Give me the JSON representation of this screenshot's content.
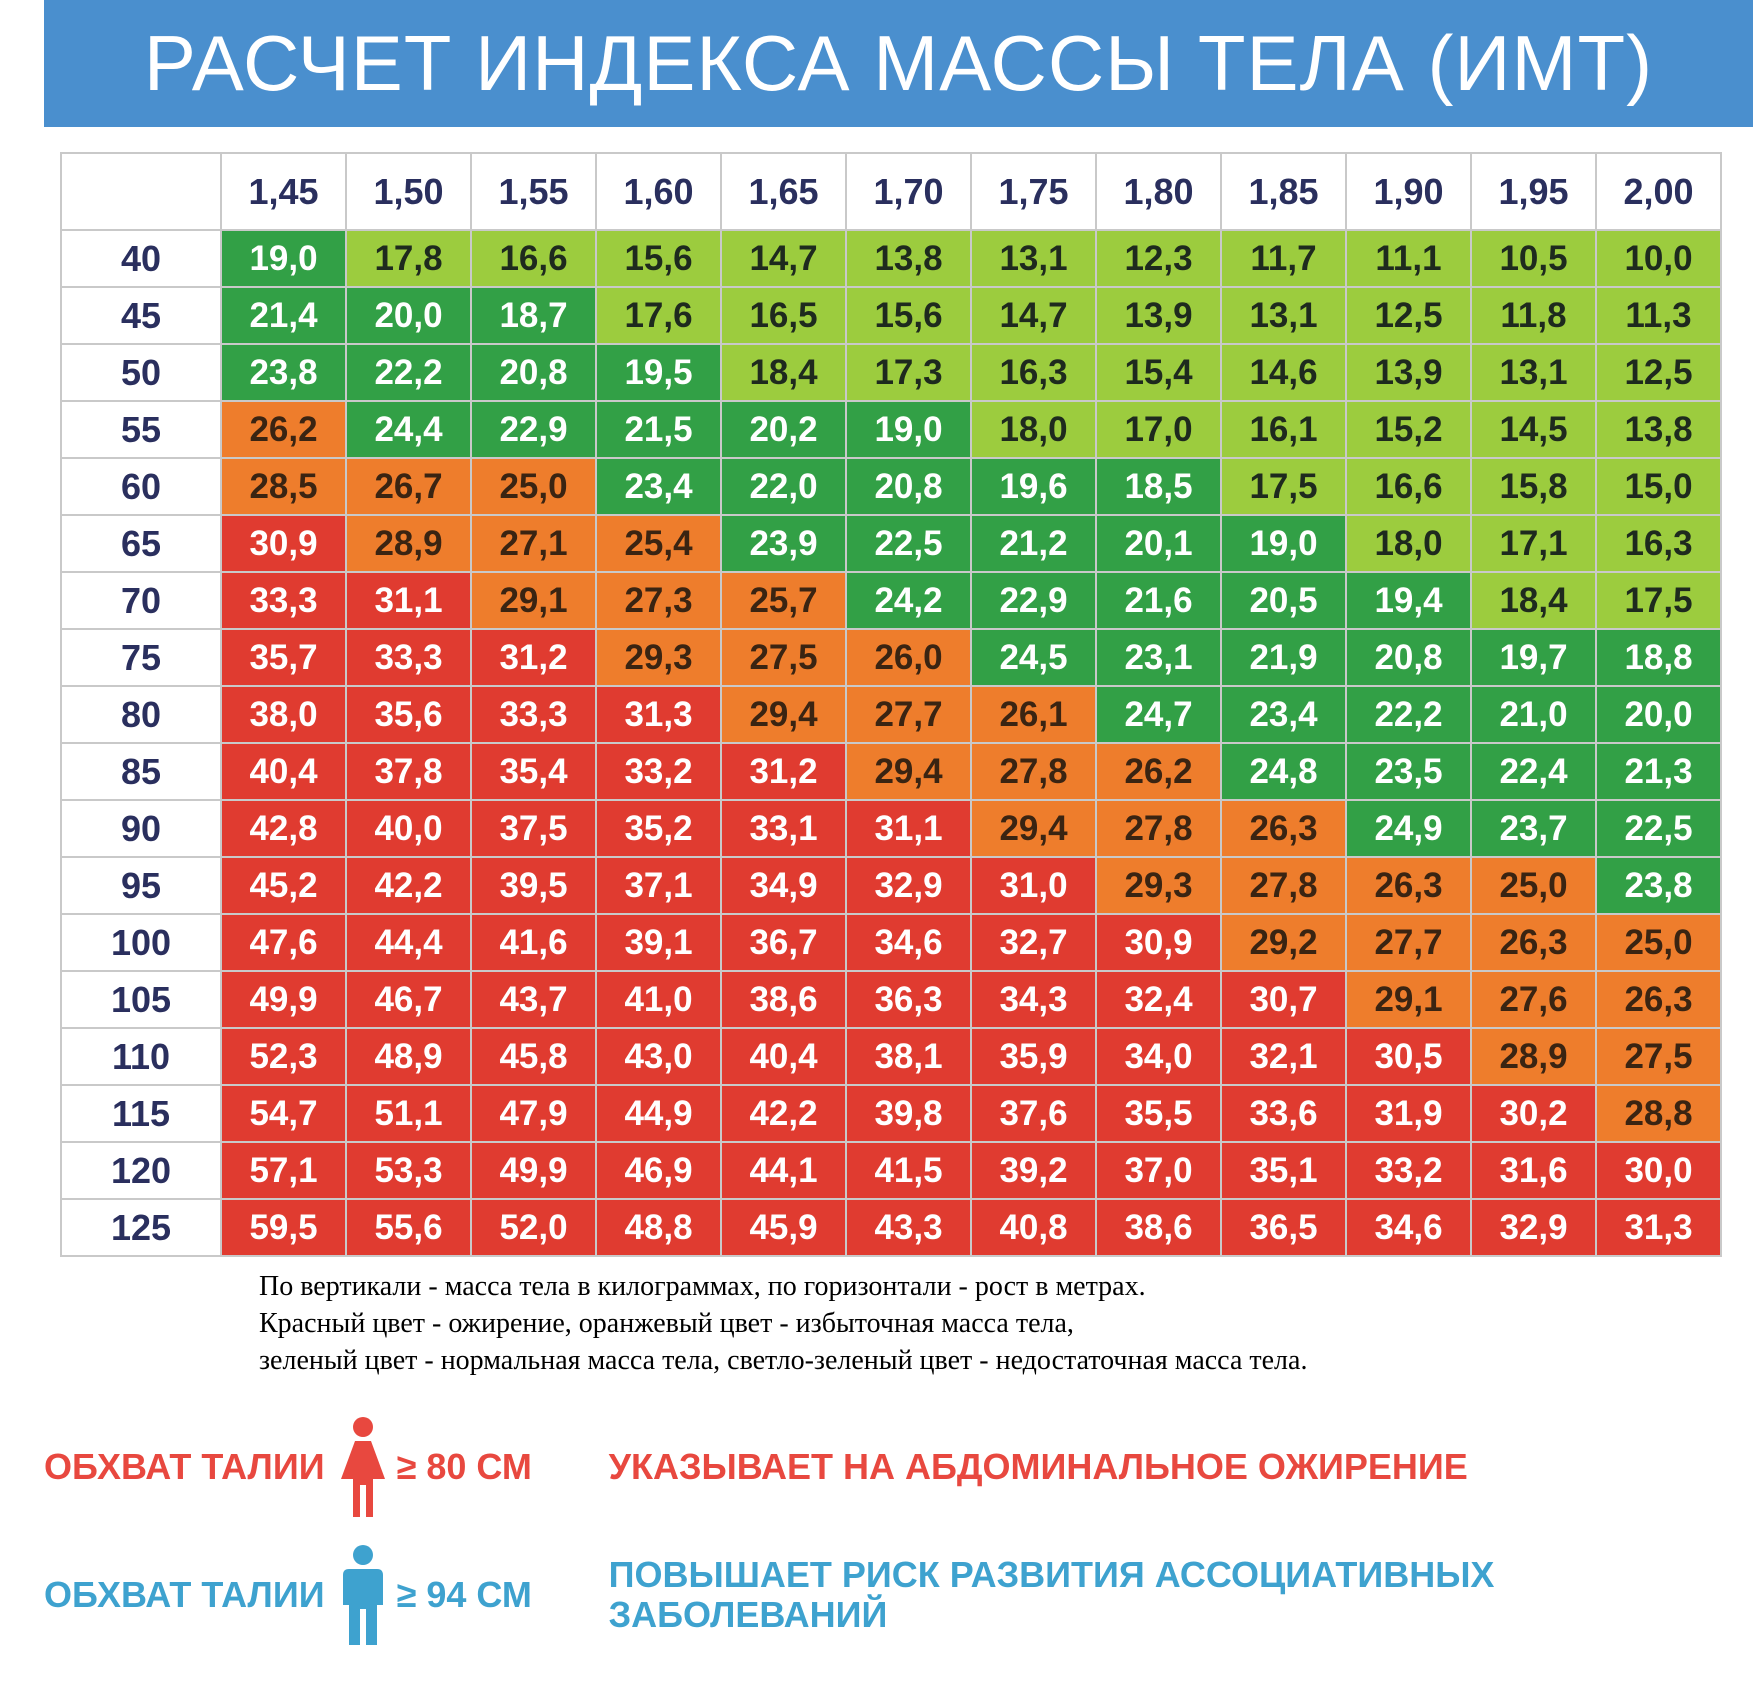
{
  "title": "РАСЧЕТ ИНДЕКСА МАССЫ ТЕЛА (ИМТ)",
  "colors": {
    "banner": "#4a8fce",
    "obesity": "#e03b30",
    "overweight": "#ee7d2c",
    "normal": "#32a046",
    "underweight": "#9ccc3e",
    "female": "#e8483f",
    "male": "#3ea2cf"
  },
  "chart_data": {
    "type": "table",
    "heights": [
      "1,45",
      "1,50",
      "1,55",
      "1,60",
      "1,65",
      "1,70",
      "1,75",
      "1,80",
      "1,85",
      "1,90",
      "1,95",
      "2,00"
    ],
    "weights": [
      "40",
      "45",
      "50",
      "55",
      "60",
      "65",
      "70",
      "75",
      "80",
      "85",
      "90",
      "95",
      "100",
      "105",
      "110",
      "115",
      "120",
      "125"
    ],
    "bmi": [
      [
        "19,0",
        "17,8",
        "16,6",
        "15,6",
        "14,7",
        "13,8",
        "13,1",
        "12,3",
        "11,7",
        "11,1",
        "10,5",
        "10,0"
      ],
      [
        "21,4",
        "20,0",
        "18,7",
        "17,6",
        "16,5",
        "15,6",
        "14,7",
        "13,9",
        "13,1",
        "12,5",
        "11,8",
        "11,3"
      ],
      [
        "23,8",
        "22,2",
        "20,8",
        "19,5",
        "18,4",
        "17,3",
        "16,3",
        "15,4",
        "14,6",
        "13,9",
        "13,1",
        "12,5"
      ],
      [
        "26,2",
        "24,4",
        "22,9",
        "21,5",
        "20,2",
        "19,0",
        "18,0",
        "17,0",
        "16,1",
        "15,2",
        "14,5",
        "13,8"
      ],
      [
        "28,5",
        "26,7",
        "25,0",
        "23,4",
        "22,0",
        "20,8",
        "19,6",
        "18,5",
        "17,5",
        "16,6",
        "15,8",
        "15,0"
      ],
      [
        "30,9",
        "28,9",
        "27,1",
        "25,4",
        "23,9",
        "22,5",
        "21,2",
        "20,1",
        "19,0",
        "18,0",
        "17,1",
        "16,3"
      ],
      [
        "33,3",
        "31,1",
        "29,1",
        "27,3",
        "25,7",
        "24,2",
        "22,9",
        "21,6",
        "20,5",
        "19,4",
        "18,4",
        "17,5"
      ],
      [
        "35,7",
        "33,3",
        "31,2",
        "29,3",
        "27,5",
        "26,0",
        "24,5",
        "23,1",
        "21,9",
        "20,8",
        "19,7",
        "18,8"
      ],
      [
        "38,0",
        "35,6",
        "33,3",
        "31,3",
        "29,4",
        "27,7",
        "26,1",
        "24,7",
        "23,4",
        "22,2",
        "21,0",
        "20,0"
      ],
      [
        "40,4",
        "37,8",
        "35,4",
        "33,2",
        "31,2",
        "29,4",
        "27,8",
        "26,2",
        "24,8",
        "23,5",
        "22,4",
        "21,3"
      ],
      [
        "42,8",
        "40,0",
        "37,5",
        "35,2",
        "33,1",
        "31,1",
        "29,4",
        "27,8",
        "26,3",
        "24,9",
        "23,7",
        "22,5"
      ],
      [
        "45,2",
        "42,2",
        "39,5",
        "37,1",
        "34,9",
        "32,9",
        "31,0",
        "29,3",
        "27,8",
        "26,3",
        "25,0",
        "23,8"
      ],
      [
        "47,6",
        "44,4",
        "41,6",
        "39,1",
        "36,7",
        "34,6",
        "32,7",
        "30,9",
        "29,2",
        "27,7",
        "26,3",
        "25,0"
      ],
      [
        "49,9",
        "46,7",
        "43,7",
        "41,0",
        "38,6",
        "36,3",
        "34,3",
        "32,4",
        "30,7",
        "29,1",
        "27,6",
        "26,3"
      ],
      [
        "52,3",
        "48,9",
        "45,8",
        "43,0",
        "40,4",
        "38,1",
        "35,9",
        "34,0",
        "32,1",
        "30,5",
        "28,9",
        "27,5"
      ],
      [
        "54,7",
        "51,1",
        "47,9",
        "44,9",
        "42,2",
        "39,8",
        "37,6",
        "35,5",
        "33,6",
        "31,9",
        "30,2",
        "28,8"
      ],
      [
        "57,1",
        "53,3",
        "49,9",
        "46,9",
        "44,1",
        "41,5",
        "39,2",
        "37,0",
        "35,1",
        "33,2",
        "31,6",
        "30,0"
      ],
      [
        "59,5",
        "55,6",
        "52,0",
        "48,8",
        "45,9",
        "43,3",
        "40,8",
        "38,6",
        "36,5",
        "34,6",
        "32,9",
        "31,3"
      ]
    ],
    "categories": [
      [
        "N",
        "U",
        "U",
        "U",
        "U",
        "U",
        "U",
        "U",
        "U",
        "U",
        "U",
        "U"
      ],
      [
        "N",
        "N",
        "N",
        "U",
        "U",
        "U",
        "U",
        "U",
        "U",
        "U",
        "U",
        "U"
      ],
      [
        "N",
        "N",
        "N",
        "N",
        "U",
        "U",
        "U",
        "U",
        "U",
        "U",
        "U",
        "U"
      ],
      [
        "O",
        "N",
        "N",
        "N",
        "N",
        "N",
        "U",
        "U",
        "U",
        "U",
        "U",
        "U"
      ],
      [
        "O",
        "O",
        "O",
        "N",
        "N",
        "N",
        "N",
        "N",
        "U",
        "U",
        "U",
        "U"
      ],
      [
        "R",
        "O",
        "O",
        "O",
        "N",
        "N",
        "N",
        "N",
        "N",
        "U",
        "U",
        "U"
      ],
      [
        "R",
        "R",
        "O",
        "O",
        "O",
        "N",
        "N",
        "N",
        "N",
        "N",
        "U",
        "U"
      ],
      [
        "R",
        "R",
        "R",
        "O",
        "O",
        "O",
        "N",
        "N",
        "N",
        "N",
        "N",
        "N"
      ],
      [
        "R",
        "R",
        "R",
        "R",
        "O",
        "O",
        "O",
        "N",
        "N",
        "N",
        "N",
        "N"
      ],
      [
        "R",
        "R",
        "R",
        "R",
        "R",
        "O",
        "O",
        "O",
        "N",
        "N",
        "N",
        "N"
      ],
      [
        "R",
        "R",
        "R",
        "R",
        "R",
        "R",
        "O",
        "O",
        "O",
        "N",
        "N",
        "N"
      ],
      [
        "R",
        "R",
        "R",
        "R",
        "R",
        "R",
        "R",
        "O",
        "O",
        "O",
        "O",
        "N"
      ],
      [
        "R",
        "R",
        "R",
        "R",
        "R",
        "R",
        "R",
        "R",
        "O",
        "O",
        "O",
        "O"
      ],
      [
        "R",
        "R",
        "R",
        "R",
        "R",
        "R",
        "R",
        "R",
        "R",
        "O",
        "O",
        "O"
      ],
      [
        "R",
        "R",
        "R",
        "R",
        "R",
        "R",
        "R",
        "R",
        "R",
        "R",
        "O",
        "O"
      ],
      [
        "R",
        "R",
        "R",
        "R",
        "R",
        "R",
        "R",
        "R",
        "R",
        "R",
        "R",
        "O"
      ],
      [
        "R",
        "R",
        "R",
        "R",
        "R",
        "R",
        "R",
        "R",
        "R",
        "R",
        "R",
        "R"
      ],
      [
        "R",
        "R",
        "R",
        "R",
        "R",
        "R",
        "R",
        "R",
        "R",
        "R",
        "R",
        "R"
      ]
    ]
  },
  "note_lines": [
    "По вертикали - масса тела в килограммах, по горизонтали - рост в метрах.",
    "Красный цвет - ожирение, оранжевый цвет - избыточная масса тела,",
    "зеленый цвет - нормальная масса тела, светло-зеленый цвет - недостаточная масса тела."
  ],
  "waist": {
    "female": {
      "label": "ОБХВАТ ТАЛИИ",
      "icon": "female-figure-icon",
      "threshold": "≥ 80 СМ",
      "description": "УКАЗЫВАЕТ НА АБДОМИНАЛЬНОЕ ОЖИРЕНИЕ"
    },
    "male": {
      "label": "ОБХВАТ ТАЛИИ",
      "icon": "male-figure-icon",
      "threshold": "≥ 94 СМ",
      "description": "ПОВЫШАЕТ РИСК РАЗВИТИЯ АССОЦИАТИВНЫХ ЗАБОЛЕВАНИЙ"
    }
  }
}
